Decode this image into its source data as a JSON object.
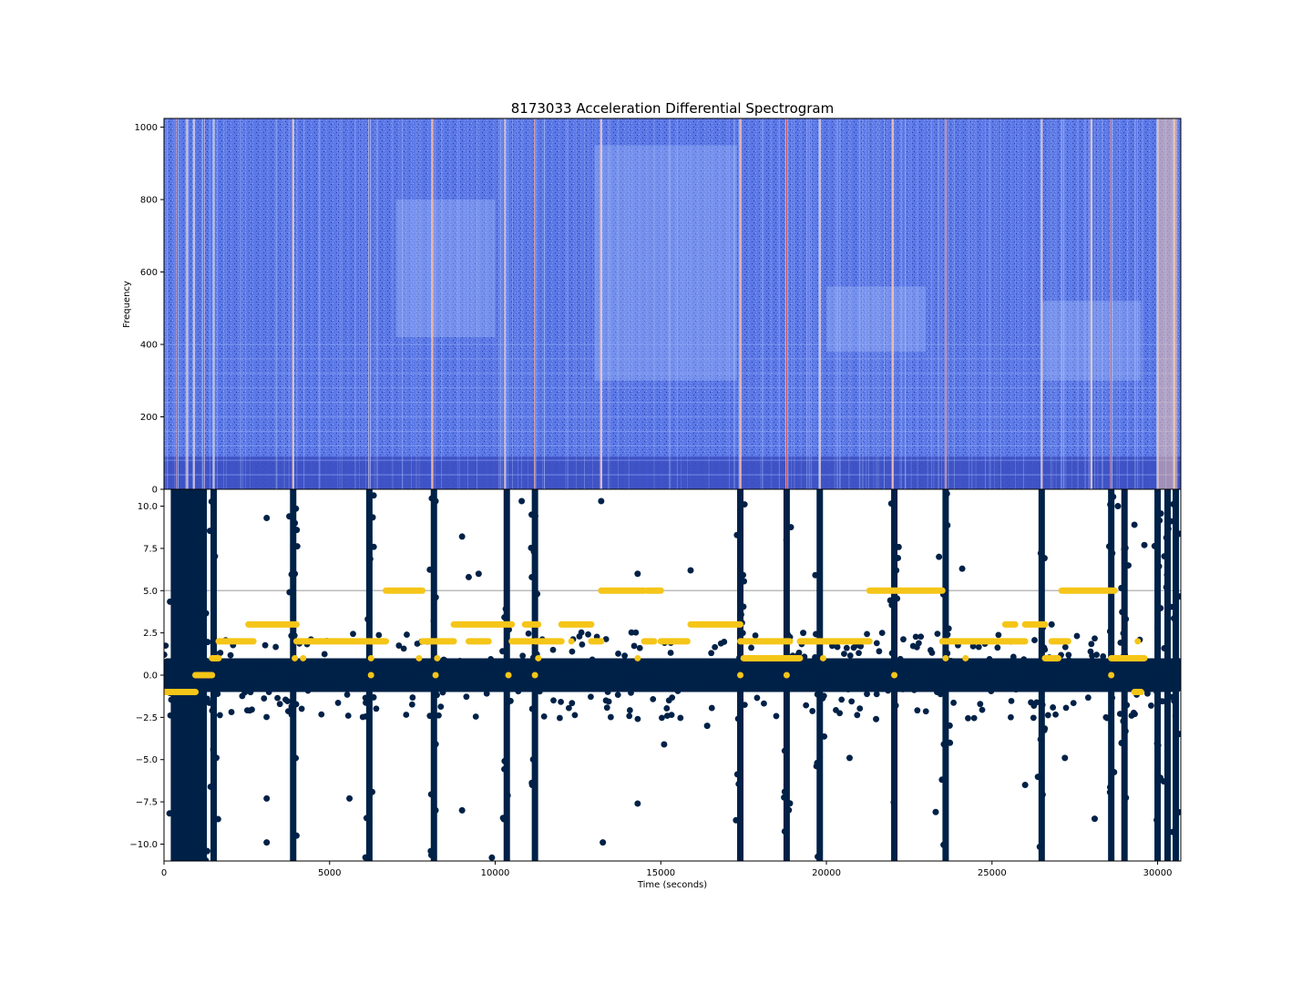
{
  "chart_data": [
    {
      "type": "heatmap",
      "title": "8173033 Acceleration Differential Spectrogram",
      "ylabel": "Frequency",
      "xlim": [
        0,
        30700
      ],
      "ylim": [
        0,
        1024
      ],
      "yticks": [
        0,
        200,
        400,
        600,
        800,
        1000
      ],
      "ytick_labels": [
        "0",
        "200",
        "400",
        "600",
        "800",
        "1000"
      ],
      "colormap": "coolwarm",
      "colors": {
        "low": "#3b4cc0",
        "mid": "#7b9ff9",
        "high": "#f7a889",
        "peak": "#c0282d"
      },
      "bright_band_times": [
        400,
        700,
        900,
        1200,
        1500,
        3900,
        6200,
        8100,
        10300,
        11200,
        13200,
        17400,
        18800,
        19800,
        22000,
        23600,
        26500,
        28000,
        28600,
        30000,
        30500
      ],
      "harmonic_bands_hz": [
        40,
        80,
        120,
        160,
        200,
        240,
        280,
        320,
        360,
        400
      ]
    },
    {
      "type": "scatter",
      "xlabel": "Time (seconds)",
      "xlim": [
        0,
        30700
      ],
      "ylim": [
        -11,
        11
      ],
      "xticks": [
        0,
        5000,
        10000,
        15000,
        20000,
        25000,
        30000
      ],
      "xtick_labels": [
        "0",
        "5000",
        "10000",
        "15000",
        "20000",
        "25000",
        "30000"
      ],
      "yticks": [
        -10.0,
        -7.5,
        -5.0,
        -2.5,
        0.0,
        2.5,
        5.0,
        7.5,
        10.0
      ],
      "ytick_labels": [
        "−10.0",
        "−7.5",
        "−5.0",
        "−2.5",
        "0.0",
        "2.5",
        "5.0",
        "7.5",
        "10.0"
      ],
      "reference_line_y": 5.0,
      "reference_line_color": "#bbbbbb",
      "series": [
        {
          "color": "#002147",
          "baseline_band": [
            -1.0,
            1.0
          ],
          "spike_times": [
            300,
            450,
            600,
            750,
            900,
            1050,
            1200,
            1500,
            3900,
            6200,
            8150,
            10350,
            11200,
            17400,
            18800,
            19800,
            22050,
            23600,
            26500,
            28600,
            29000,
            30000,
            30300,
            30550
          ],
          "sparse_outliers": [
            [
              3100,
              9.3
            ],
            [
              3100,
              -7.3
            ],
            [
              3100,
              -9.9
            ],
            [
              3950,
              9.0
            ],
            [
              3950,
              6.0
            ],
            [
              4000,
              -9.5
            ],
            [
              5600,
              -7.3
            ],
            [
              8200,
              10.3
            ],
            [
              8200,
              -8.0
            ],
            [
              9000,
              8.2
            ],
            [
              9000,
              -8.0
            ],
            [
              9200,
              5.8
            ],
            [
              9500,
              6.0
            ],
            [
              9900,
              -10.8
            ],
            [
              10800,
              10.3
            ],
            [
              11100,
              9.5
            ],
            [
              13200,
              10.3
            ],
            [
              13250,
              -9.9
            ],
            [
              14300,
              -7.6
            ],
            [
              14300,
              6.0
            ],
            [
              15100,
              -4.1
            ],
            [
              15900,
              6.2
            ],
            [
              16400,
              -3.0
            ],
            [
              19300,
              2.5
            ],
            [
              20700,
              -4.9
            ],
            [
              21500,
              -2.6
            ],
            [
              23300,
              -8.1
            ],
            [
              23400,
              7.0
            ],
            [
              24100,
              6.3
            ],
            [
              26000,
              -6.5
            ],
            [
              26800,
              3.0
            ],
            [
              27200,
              -4.9
            ],
            [
              28100,
              -8.5
            ],
            [
              28800,
              10.0
            ],
            [
              29300,
              8.9
            ],
            [
              29600,
              7.7
            ]
          ]
        },
        {
          "color": "#f5c518",
          "segments": [
            [
              0,
              950,
              -1.0
            ],
            [
              950,
              1450,
              0.0
            ],
            [
              1450,
              1650,
              1.0
            ],
            [
              1650,
              2700,
              2.0
            ],
            [
              2550,
              2700,
              3.0
            ],
            [
              2700,
              4000,
              3.0
            ],
            [
              4000,
              6700,
              2.0
            ],
            [
              6700,
              7800,
              5.0
            ],
            [
              7800,
              8750,
              2.0
            ],
            [
              8750,
              10500,
              3.0
            ],
            [
              9200,
              9800,
              2.0
            ],
            [
              10500,
              11100,
              2.0
            ],
            [
              10900,
              11300,
              3.0
            ],
            [
              11200,
              12000,
              2.0
            ],
            [
              12000,
              12900,
              3.0
            ],
            [
              12900,
              13200,
              2.0
            ],
            [
              13200,
              14500,
              5.0
            ],
            [
              14500,
              14800,
              2.0
            ],
            [
              14600,
              15000,
              5.0
            ],
            [
              15000,
              15800,
              2.0
            ],
            [
              15900,
              17400,
              3.0
            ],
            [
              17400,
              18900,
              2.0
            ],
            [
              17500,
              19200,
              1.0
            ],
            [
              19200,
              21300,
              2.0
            ],
            [
              21300,
              23500,
              5.0
            ],
            [
              23500,
              25700,
              2.0
            ],
            [
              25400,
              25700,
              3.0
            ],
            [
              25700,
              26000,
              2.0
            ],
            [
              26000,
              26600,
              3.0
            ],
            [
              26600,
              27000,
              1.0
            ],
            [
              26800,
              27300,
              2.0
            ],
            [
              27100,
              28700,
              5.0
            ],
            [
              28600,
              29600,
              1.0
            ],
            [
              29300,
              29500,
              -1.0
            ]
          ],
          "isolated_points": [
            [
              3950,
              1.0
            ],
            [
              4200,
              1.0
            ],
            [
              6250,
              1.0
            ],
            [
              6250,
              0.0
            ],
            [
              7700,
              1.0
            ],
            [
              8250,
              1.0
            ],
            [
              8200,
              0.0
            ],
            [
              10400,
              0.0
            ],
            [
              11200,
              0.0
            ],
            [
              11300,
              1.0
            ],
            [
              12300,
              2.0
            ],
            [
              14300,
              1.0
            ],
            [
              17400,
              0.0
            ],
            [
              18200,
              1.0
            ],
            [
              18800,
              0.0
            ],
            [
              19900,
              1.0
            ],
            [
              22050,
              0.0
            ],
            [
              23600,
              1.0
            ],
            [
              24200,
              1.0
            ],
            [
              28600,
              0.0
            ],
            [
              29400,
              2.0
            ]
          ]
        }
      ]
    }
  ]
}
